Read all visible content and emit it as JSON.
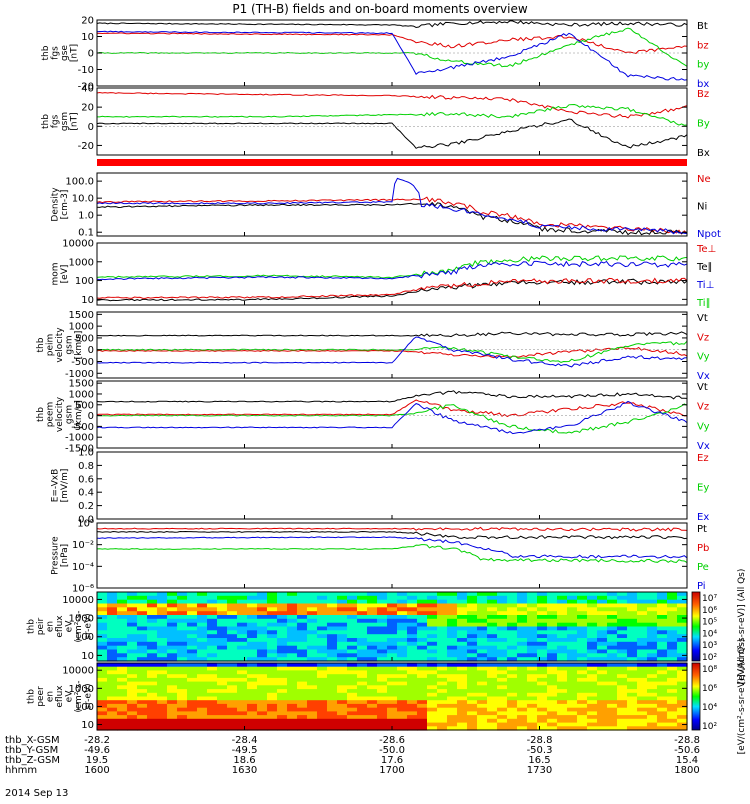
{
  "title": "P1 (TH-B) fields and on-board moments overview",
  "date_label": "2014 Sep 13",
  "colors": {
    "black": "#000000",
    "red": "#e00000",
    "green": "#00d000",
    "blue": "#0000e0",
    "status_red": "#ff0000"
  },
  "chart_data": [
    {
      "id": "fgs_gse",
      "type": "line",
      "ylabel_lines": [
        "thb",
        "fgs",
        "gse",
        "[nT]"
      ],
      "ylim": [
        -20,
        20
      ],
      "yticks": [
        {
          "v": 20,
          "t": "20"
        },
        {
          "v": 10,
          "t": "10"
        },
        {
          "v": 0,
          "t": "0"
        },
        {
          "v": -10,
          "t": "-10"
        },
        {
          "v": -20,
          "t": "-20"
        }
      ],
      "legend": [
        {
          "text": "Bt",
          "color": "black"
        },
        {
          "text": "bz",
          "color": "red"
        },
        {
          "text": "by",
          "color": "green"
        },
        {
          "text": "bx",
          "color": "blue"
        }
      ],
      "series": [
        {
          "name": "Bt",
          "color": "black",
          "x": [
            0,
            0.5,
            0.54,
            0.6,
            0.7,
            0.8,
            0.9,
            1
          ],
          "y": [
            18,
            17,
            16,
            18,
            19,
            17,
            18,
            17
          ]
        },
        {
          "name": "bz",
          "color": "red",
          "x": [
            0,
            0.5,
            0.54,
            0.6,
            0.7,
            0.8,
            0.9,
            1
          ],
          "y": [
            12,
            11,
            7,
            4,
            8,
            10,
            0,
            4
          ]
        },
        {
          "name": "by",
          "color": "green",
          "x": [
            0,
            0.5,
            0.54,
            0.6,
            0.7,
            0.8,
            0.9,
            1
          ],
          "y": [
            0,
            0,
            0,
            -5,
            -8,
            5,
            15,
            -8
          ]
        },
        {
          "name": "bx",
          "color": "blue",
          "x": [
            0,
            0.5,
            0.54,
            0.6,
            0.7,
            0.8,
            0.9,
            1
          ],
          "y": [
            13,
            12,
            -12,
            -9,
            -2,
            12,
            -14,
            -16
          ]
        }
      ]
    },
    {
      "id": "fgs_gsm",
      "type": "line",
      "ylabel_lines": [
        "thb",
        "fgs",
        "gsm",
        "[nT]"
      ],
      "ylim": [
        -30,
        40
      ],
      "yticks": [
        {
          "v": 40,
          "t": "40"
        },
        {
          "v": 20,
          "t": "20"
        },
        {
          "v": 0,
          "t": "0"
        },
        {
          "v": -20,
          "t": "-20"
        }
      ],
      "legend": [
        {
          "text": "Bz",
          "color": "red"
        },
        {
          "text": "By",
          "color": "green"
        },
        {
          "text": "Bx",
          "color": "black"
        }
      ],
      "series": [
        {
          "name": "Bz",
          "color": "red",
          "x": [
            0,
            0.3,
            0.5,
            0.6,
            0.7,
            0.8,
            0.9,
            1
          ],
          "y": [
            35,
            33,
            32,
            30,
            28,
            15,
            10,
            20
          ]
        },
        {
          "name": "By",
          "color": "green",
          "x": [
            0,
            0.3,
            0.5,
            0.6,
            0.7,
            0.8,
            0.9,
            1
          ],
          "y": [
            10,
            10,
            12,
            13,
            10,
            22,
            18,
            0
          ]
        },
        {
          "name": "Bx",
          "color": "black",
          "x": [
            0,
            0.5,
            0.54,
            0.6,
            0.7,
            0.8,
            0.9,
            1
          ],
          "y": [
            3,
            3,
            -22,
            -19,
            -5,
            7,
            -22,
            -10
          ]
        }
      ]
    },
    {
      "id": "density",
      "type": "line",
      "ylabel_lines": [
        "Density",
        "[cm-3]"
      ],
      "yscale": "log",
      "ylim": [
        0.06,
        300
      ],
      "yticks": [
        {
          "v": 100,
          "t": "100.0"
        },
        {
          "v": 10,
          "t": "10.0"
        },
        {
          "v": 1,
          "t": "1.0"
        },
        {
          "v": 0.1,
          "t": "0.1"
        }
      ],
      "legend": [
        {
          "text": "Ne",
          "color": "red"
        },
        {
          "text": "Ni",
          "color": "black"
        },
        {
          "text": "Npot",
          "color": "blue"
        }
      ],
      "series": [
        {
          "name": "Ne",
          "color": "red",
          "x": [
            0,
            0.3,
            0.5,
            0.55,
            0.65,
            0.75,
            0.9,
            1
          ],
          "y": [
            6,
            7,
            8,
            9,
            1.5,
            0.3,
            0.15,
            0.1
          ]
        },
        {
          "name": "Ni",
          "color": "black",
          "x": [
            0,
            0.3,
            0.5,
            0.55,
            0.65,
            0.75,
            0.9,
            1
          ],
          "y": [
            3,
            4,
            4,
            5,
            0.8,
            0.15,
            0.1,
            0.1
          ]
        },
        {
          "name": "Npot",
          "color": "blue",
          "x": [
            0,
            0.3,
            0.5,
            0.51,
            0.55,
            0.65,
            0.75,
            1
          ],
          "y": [
            5,
            5,
            6,
            150,
            4,
            1,
            0.2,
            0.1
          ]
        }
      ]
    },
    {
      "id": "mom_temp",
      "type": "line",
      "ylabel_lines": [
        "mom",
        "[eV]"
      ],
      "yscale": "log",
      "ylim": [
        5,
        10000
      ],
      "yticks": [
        {
          "v": 10000,
          "t": "10000"
        },
        {
          "v": 1000,
          "t": "1000"
        },
        {
          "v": 100,
          "t": "100"
        },
        {
          "v": 10,
          "t": "10"
        }
      ],
      "legend": [
        {
          "text": "Te⊥",
          "color": "red"
        },
        {
          "text": "Te∥",
          "color": "black"
        },
        {
          "text": "Ti⊥",
          "color": "blue"
        },
        {
          "text": "Ti∥",
          "color": "green"
        }
      ],
      "series": [
        {
          "name": "Ti∥",
          "color": "green",
          "x": [
            0,
            0.3,
            0.5,
            0.6,
            0.65,
            0.75,
            1
          ],
          "y": [
            150,
            180,
            150,
            300,
            1000,
            1500,
            1500
          ]
        },
        {
          "name": "Ti⊥",
          "color": "blue",
          "x": [
            0,
            0.3,
            0.5,
            0.6,
            0.65,
            0.75,
            1
          ],
          "y": [
            120,
            150,
            130,
            250,
            700,
            800,
            700
          ]
        },
        {
          "name": "Te∥",
          "color": "black",
          "x": [
            0,
            0.3,
            0.5,
            0.6,
            0.7,
            1
          ],
          "y": [
            9,
            10,
            15,
            40,
            80,
            90
          ]
        },
        {
          "name": "Te⊥",
          "color": "red",
          "x": [
            0,
            0.3,
            0.5,
            0.6,
            0.7,
            1
          ],
          "y": [
            12,
            13,
            18,
            50,
            90,
            100
          ]
        }
      ]
    },
    {
      "id": "peim_velocity",
      "type": "line",
      "ylabel_lines": [
        "thb",
        "peim",
        "velocity",
        "gsm",
        "[km/s]"
      ],
      "ylim": [
        -1200,
        1600
      ],
      "yticks": [
        {
          "v": 1500,
          "t": "1500"
        },
        {
          "v": 1000,
          "t": "1000"
        },
        {
          "v": 500,
          "t": "500"
        },
        {
          "v": 0,
          "t": "0"
        },
        {
          "v": -500,
          "t": "-500"
        },
        {
          "v": -1000,
          "t": "-1000"
        }
      ],
      "legend": [
        {
          "text": "Vt",
          "color": "black"
        },
        {
          "text": "Vz",
          "color": "red"
        },
        {
          "text": "Vy",
          "color": "green"
        },
        {
          "text": "Vx",
          "color": "blue"
        }
      ],
      "series": [
        {
          "name": "Vt",
          "color": "black",
          "x": [
            0,
            0.5,
            0.54,
            0.6,
            0.7,
            0.8,
            0.9,
            1
          ],
          "y": [
            600,
            600,
            600,
            600,
            700,
            650,
            650,
            700
          ]
        },
        {
          "name": "Vz",
          "color": "red",
          "x": [
            0,
            0.5,
            0.54,
            0.6,
            0.7,
            0.8,
            0.9,
            1
          ],
          "y": [
            -50,
            -50,
            -100,
            -200,
            -300,
            -100,
            100,
            -200
          ]
        },
        {
          "name": "Vy",
          "color": "green",
          "x": [
            0,
            0.5,
            0.54,
            0.6,
            0.7,
            0.8,
            0.9,
            1
          ],
          "y": [
            0,
            0,
            0,
            100,
            -300,
            -500,
            200,
            300
          ]
        },
        {
          "name": "Vx",
          "color": "blue",
          "x": [
            0,
            0.5,
            0.54,
            0.6,
            0.7,
            0.8,
            0.9,
            1
          ],
          "y": [
            -550,
            -550,
            550,
            0,
            -400,
            -700,
            -300,
            -400
          ]
        }
      ]
    },
    {
      "id": "peem_velocity",
      "type": "line",
      "ylabel_lines": [
        "thb",
        "peem",
        "velocity",
        "gsm",
        "[km/s]"
      ],
      "ylim": [
        -1500,
        1600
      ],
      "yticks": [
        {
          "v": 1500,
          "t": "1500"
        },
        {
          "v": 1000,
          "t": "1000"
        },
        {
          "v": 500,
          "t": "500"
        },
        {
          "v": 0,
          "t": "0"
        },
        {
          "v": -500,
          "t": "-500"
        },
        {
          "v": -1000,
          "t": "-1000"
        },
        {
          "v": -1500,
          "t": "-1500"
        }
      ],
      "legend": [
        {
          "text": "Vt",
          "color": "black"
        },
        {
          "text": "Vz",
          "color": "red"
        },
        {
          "text": "Vy",
          "color": "green"
        },
        {
          "text": "Vx",
          "color": "blue"
        }
      ],
      "series": [
        {
          "name": "Vt",
          "color": "black",
          "x": [
            0,
            0.5,
            0.54,
            0.6,
            0.7,
            0.8,
            0.9,
            1
          ],
          "y": [
            650,
            650,
            900,
            1100,
            900,
            900,
            1000,
            800
          ]
        },
        {
          "name": "Vz",
          "color": "red",
          "x": [
            0,
            0.5,
            0.54,
            0.6,
            0.7,
            0.8,
            0.9,
            1
          ],
          "y": [
            50,
            50,
            700,
            300,
            0,
            300,
            600,
            0
          ]
        },
        {
          "name": "Vy",
          "color": "green",
          "x": [
            0,
            0.5,
            0.54,
            0.6,
            0.7,
            0.8,
            0.9,
            1
          ],
          "y": [
            0,
            0,
            100,
            500,
            -500,
            -800,
            -300,
            500
          ]
        },
        {
          "name": "Vx",
          "color": "blue",
          "x": [
            0,
            0.5,
            0.54,
            0.6,
            0.7,
            0.8,
            0.9,
            1
          ],
          "y": [
            -550,
            -550,
            550,
            -200,
            -800,
            -500,
            600,
            -300
          ]
        }
      ]
    },
    {
      "id": "efield",
      "type": "line",
      "ylabel_lines": [
        "E=-VxB",
        "[mV/m]"
      ],
      "ylim": [
        0,
        1
      ],
      "yticks": [
        {
          "v": 1,
          "t": "1.0"
        },
        {
          "v": 0.8,
          "t": "0.8"
        },
        {
          "v": 0.6,
          "t": "0.6"
        },
        {
          "v": 0.4,
          "t": "0.4"
        },
        {
          "v": 0.2,
          "t": "0.2"
        },
        {
          "v": 0,
          "t": "0.0"
        }
      ],
      "legend": [
        {
          "text": "Ez",
          "color": "red"
        },
        {
          "text": "Ey",
          "color": "green"
        },
        {
          "text": "Ex",
          "color": "blue"
        }
      ],
      "series": []
    },
    {
      "id": "pressure",
      "type": "line",
      "ylabel_lines": [
        "Pressure",
        "[nPa]"
      ],
      "yscale": "log",
      "ylim": [
        1e-06,
        1
      ],
      "yticks": [
        {
          "v": 1,
          "t": "10⁰"
        },
        {
          "v": 0.01,
          "t": "10⁻²"
        },
        {
          "v": 0.0001,
          "t": "10⁻⁴"
        },
        {
          "v": 1e-06,
          "t": "10⁻⁶"
        }
      ],
      "legend": [
        {
          "text": "Pt",
          "color": "black"
        },
        {
          "text": "Pb",
          "color": "red"
        },
        {
          "text": "Pe",
          "color": "green"
        },
        {
          "text": "Pi",
          "color": "blue"
        }
      ],
      "series": [
        {
          "name": "Pb",
          "color": "red",
          "x": [
            0,
            0.5,
            0.6,
            0.8,
            1
          ],
          "y": [
            0.3,
            0.3,
            0.3,
            0.25,
            0.25
          ]
        },
        {
          "name": "Pt",
          "color": "black",
          "x": [
            0,
            0.5,
            0.55,
            0.6,
            0.7,
            1
          ],
          "y": [
            0.15,
            0.15,
            0.1,
            0.05,
            0.05,
            0.05
          ]
        },
        {
          "name": "Pi",
          "color": "blue",
          "x": [
            0,
            0.5,
            0.55,
            0.65,
            0.7,
            1
          ],
          "y": [
            0.04,
            0.05,
            0.03,
            0.005,
            0.0008,
            0.0008
          ]
        },
        {
          "name": "Pe",
          "color": "green",
          "x": [
            0,
            0.5,
            0.55,
            0.65,
            1
          ],
          "y": [
            0.004,
            0.004,
            0.008,
            0.0004,
            0.0003
          ]
        }
      ]
    },
    {
      "id": "peir_spec",
      "type": "heatmap",
      "ylabel_lines": [
        "thb",
        "peir",
        "en",
        "eflux",
        "eV",
        "(cm²-s-",
        "sr-eV)"
      ],
      "yscale": "log",
      "ylim": [
        5,
        25000
      ],
      "yticks": [
        {
          "v": 10000,
          "t": "10000"
        },
        {
          "v": 1000,
          "t": "1000"
        },
        {
          "v": 100,
          "t": "100"
        },
        {
          "v": 10,
          "t": "10"
        }
      ],
      "colorbar": {
        "label": "[eV/(cm²-s-sr-eV)] (All Qs)",
        "ticks": [
          "10⁷",
          "10⁶",
          "10⁵",
          "10⁴",
          "10³",
          "10²"
        ]
      }
    },
    {
      "id": "peer_spec",
      "type": "heatmap",
      "ylabel_lines": [
        "thb",
        "peer",
        "en",
        "eflux",
        "eV",
        "(cm²-s-",
        "sr-eV)"
      ],
      "yscale": "log",
      "ylim": [
        5,
        25000
      ],
      "yticks": [
        {
          "v": 10000,
          "t": "10000"
        },
        {
          "v": 1000,
          "t": "1000"
        },
        {
          "v": 100,
          "t": "100"
        },
        {
          "v": 10,
          "t": "10"
        }
      ],
      "colorbar": {
        "label": "[eV/(cm²-s-sr-eV)] (All Qs)",
        "ticks": [
          "10⁸",
          "10⁶",
          "10⁴",
          "10²"
        ]
      }
    }
  ],
  "xaxis": {
    "row_labels": [
      "thb_X-GSM",
      "thb_Y-GSM",
      "thb_Z-GSM",
      "hhmm"
    ],
    "columns": [
      {
        "x": 0.0,
        "values": [
          "-28.2",
          "-49.6",
          "19.5",
          "1600"
        ]
      },
      {
        "x": 0.25,
        "values": [
          "-28.4",
          "-49.5",
          "18.6",
          "1630"
        ]
      },
      {
        "x": 0.5,
        "values": [
          "-28.6",
          "-50.0",
          "17.6",
          "1700"
        ]
      },
      {
        "x": 0.75,
        "values": [
          "-28.8",
          "-50.3",
          "16.5",
          "1730"
        ]
      },
      {
        "x": 1.0,
        "values": [
          "-28.8",
          "-50.6",
          "15.4",
          "1800"
        ]
      }
    ]
  }
}
